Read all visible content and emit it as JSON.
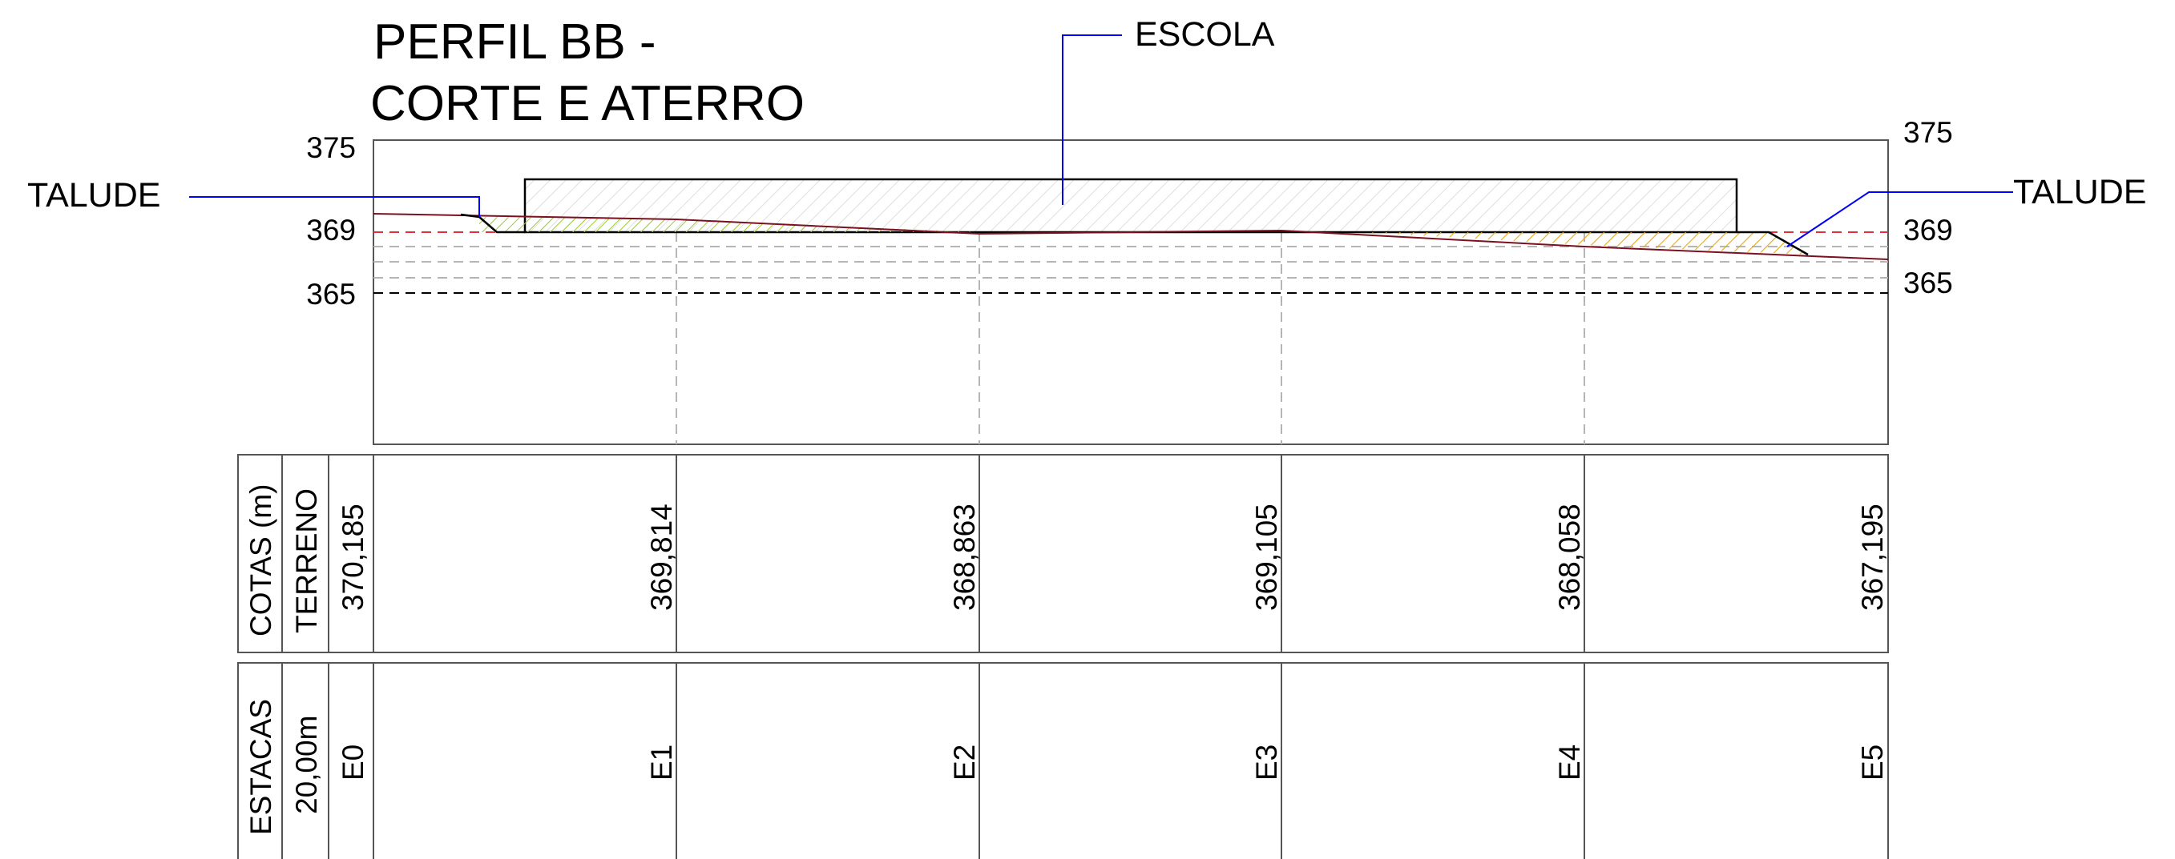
{
  "title_line1": "PERFIL BB -",
  "title_line2": "CORTE E ATERRO",
  "labels": {
    "escola": "ESCOLA",
    "talude_left": "TALUDE",
    "talude_right": "TALUDE"
  },
  "elevation_labels": {
    "left": [
      "375",
      "369",
      "365"
    ],
    "right": [
      "375",
      "369",
      "365"
    ]
  },
  "table": {
    "cotas_label": "COTAS (m)",
    "terreno_label": "TERRENO",
    "estacas_label": "ESTACAS",
    "spacing_label": "20,00m",
    "stations": [
      "E0",
      "E1",
      "E2",
      "E3",
      "E4",
      "E5"
    ],
    "elevations": [
      "370,185",
      "369,814",
      "368,863",
      "369,105",
      "368,058",
      "367,195"
    ]
  },
  "colors": {
    "line": "#000000",
    "callout": "#0000ff",
    "design_level": "#e0303a",
    "terrain": "#7a1020",
    "cut_hatch": "#9acd32",
    "fill_hatch": "#e6a817",
    "grid": "#b5b5b5"
  },
  "chart_data": {
    "type": "line",
    "x": [
      "E0",
      "E1",
      "E2",
      "E3",
      "E4",
      "E5"
    ],
    "series": [
      {
        "values": [
          370.185,
          369.814,
          368.863,
          369.105,
          368.058,
          367.195
        ]
      }
    ],
    "ylim": [
      365,
      375
    ]
  }
}
